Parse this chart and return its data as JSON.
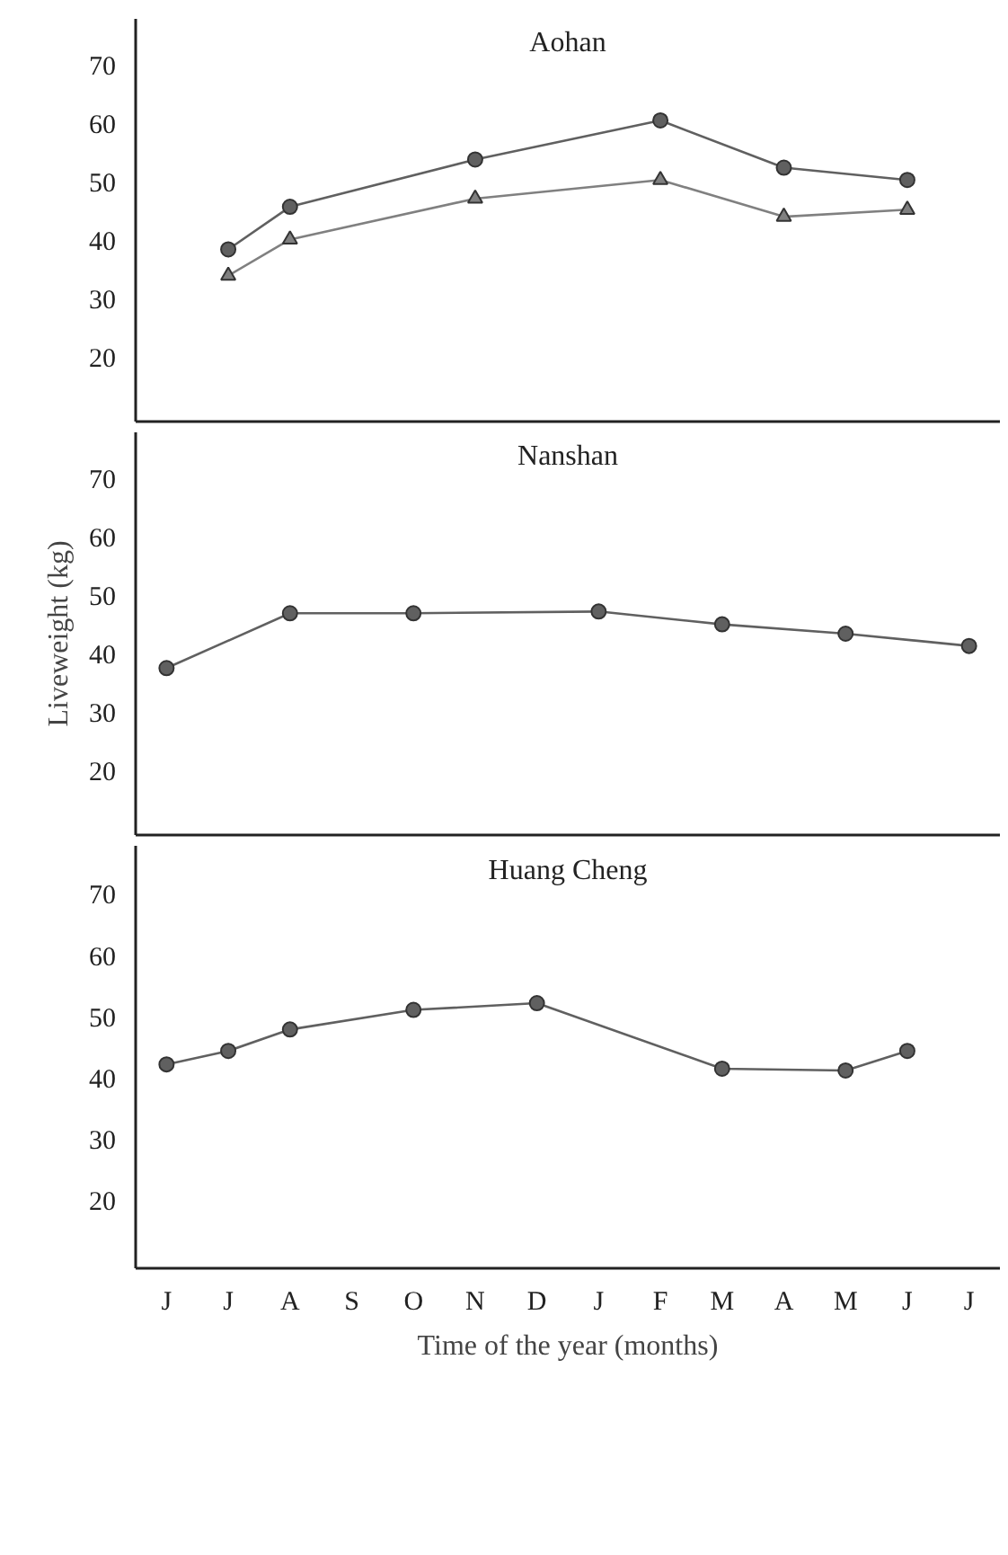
{
  "chart_data": [
    {
      "type": "line",
      "title": "Aohan",
      "categories": [
        null,
        null,
        null,
        null,
        null,
        null,
        null,
        null,
        null,
        null,
        null,
        null,
        null,
        null
      ],
      "ylim": [
        9,
        78
      ],
      "yticks": [
        20,
        30,
        40,
        50,
        60,
        70
      ],
      "tick_labels": "y",
      "grid": false,
      "series": [
        {
          "color": "#606060",
          "marker": "circle",
          "values": [
            null,
            38.5,
            45.8,
            null,
            null,
            53.9,
            null,
            null,
            60.6,
            null,
            52.5,
            null,
            50.4,
            null
          ]
        },
        {
          "color": "#808080",
          "marker": "triangle",
          "values": [
            null,
            34,
            40.2,
            null,
            null,
            47.2,
            null,
            null,
            50.4,
            null,
            44.1,
            null,
            45.3,
            null
          ]
        }
      ]
    },
    {
      "type": "line",
      "title": "Nanshan",
      "ylabel": "Liveweight (kg)",
      "categories": [
        null,
        null,
        null,
        null,
        null,
        null,
        null,
        null,
        null,
        null,
        null,
        null,
        null,
        null
      ],
      "ylim": [
        9,
        78
      ],
      "yticks": [
        20,
        30,
        40,
        50,
        60,
        70
      ],
      "tick_labels": "y",
      "grid": false,
      "series": [
        {
          "color": "#606060",
          "marker": "circle",
          "values": [
            37.6,
            null,
            47,
            null,
            47,
            null,
            null,
            47.3,
            null,
            45.1,
            null,
            43.5,
            null,
            41.4
          ]
        }
      ]
    },
    {
      "type": "line",
      "title": "Huang Cheng",
      "xlabel": "Time of the year (months)",
      "categories": [
        "J",
        "J",
        "A",
        "S",
        "O",
        "N",
        "D",
        "J",
        "F",
        "M",
        "A",
        "M",
        "J",
        "J"
      ],
      "ylim": [
        9,
        78
      ],
      "yticks": [
        20,
        30,
        40,
        50,
        60,
        70
      ],
      "grid": false,
      "series": [
        {
          "color": "#606060",
          "marker": "circle",
          "values": [
            42.3,
            44.5,
            48,
            null,
            51.2,
            null,
            52.3,
            null,
            null,
            41.6,
            null,
            41.3,
            44.5,
            null
          ]
        }
      ]
    }
  ]
}
